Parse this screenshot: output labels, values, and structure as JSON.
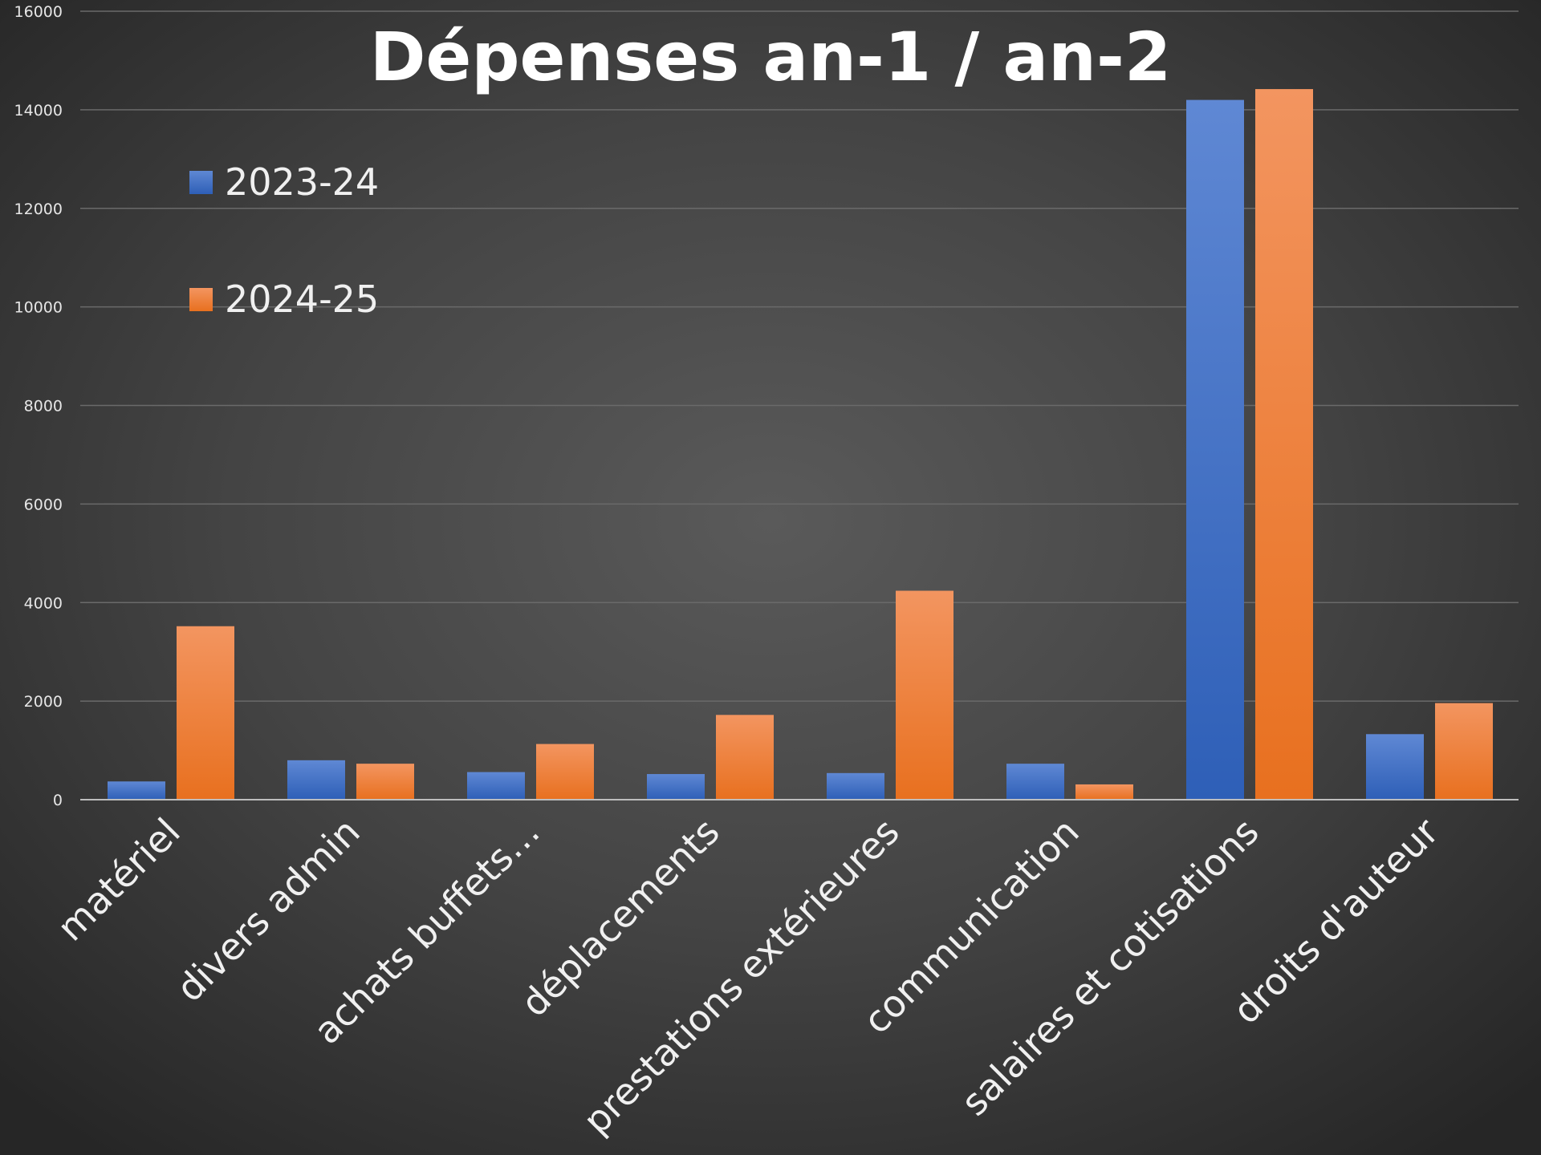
{
  "chart_data": {
    "type": "bar",
    "title": "Dépenses an-1 / an-2",
    "categories": [
      "matériel",
      "divers admin",
      "achats buffets…",
      "déplacements",
      "prestations extérieures",
      "communication",
      "salaires et cotisations",
      "droits d'auteur"
    ],
    "series": [
      {
        "name": "2023-24",
        "values": [
          370,
          800,
          560,
          520,
          540,
          730,
          14200,
          1330
        ],
        "color": "#4472C4"
      },
      {
        "name": "2024-25",
        "values": [
          3520,
          730,
          1130,
          1720,
          4240,
          310,
          14420,
          1960
        ],
        "color": "#ED7D31"
      }
    ],
    "ylim": [
      0,
      16000
    ],
    "yticks": [
      "0",
      "2000",
      "4000",
      "6000",
      "8000",
      "10000",
      "12000",
      "14000",
      "16000"
    ],
    "grid": true,
    "legend_position": "top-left"
  }
}
